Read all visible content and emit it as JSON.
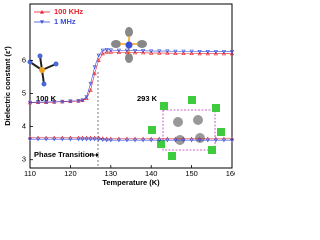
{
  "chart_data": {
    "type": "line",
    "x_label": "Temperature (K)",
    "y_label": "Dielectric constant (ε′)",
    "x": [
      110,
      112,
      114,
      116,
      118,
      120,
      122,
      123,
      124,
      125,
      126,
      127,
      128,
      129,
      130,
      132,
      134,
      136,
      138,
      140,
      142,
      144,
      146,
      148,
      150,
      152,
      154,
      156,
      158,
      160
    ],
    "series": [
      {
        "name": "100 KHz",
        "color": "#e8202a",
        "marker": "triangle-up",
        "values": [
          4.72,
          4.73,
          4.73,
          4.74,
          4.75,
          4.76,
          4.77,
          4.79,
          4.85,
          5.1,
          5.6,
          6.0,
          6.2,
          6.25,
          6.25,
          6.24,
          6.24,
          6.23,
          6.23,
          6.22,
          6.22,
          6.22,
          6.21,
          6.21,
          6.21,
          6.2,
          6.2,
          6.2,
          6.2,
          6.2
        ]
      },
      {
        "name": "1 MHz",
        "color": "#3a4fd8",
        "marker": "triangle-down",
        "values": [
          4.73,
          4.74,
          4.74,
          4.75,
          4.76,
          4.77,
          4.78,
          4.8,
          4.9,
          5.3,
          5.8,
          6.15,
          6.3,
          6.32,
          6.31,
          6.3,
          6.3,
          6.29,
          6.29,
          6.28,
          6.28,
          6.28,
          6.27,
          6.27,
          6.27,
          6.26,
          6.26,
          6.26,
          6.26,
          6.26
        ]
      },
      {
        "color": "#e8202a",
        "marker": "triangle-up",
        "values": [
          3.66,
          3.66,
          3.66,
          3.66,
          3.66,
          3.66,
          3.66,
          3.66,
          3.66,
          3.66,
          3.66,
          3.66,
          3.64,
          3.63,
          3.63,
          3.63,
          3.63,
          3.63,
          3.63,
          3.63,
          3.63,
          3.63,
          3.63,
          3.63,
          3.63,
          3.63,
          3.63,
          3.63,
          3.63,
          3.63
        ]
      },
      {
        "color": "#3a4fd8",
        "marker": "triangle-down",
        "values": [
          3.62,
          3.62,
          3.62,
          3.62,
          3.62,
          3.62,
          3.62,
          3.62,
          3.62,
          3.62,
          3.62,
          3.62,
          3.6,
          3.59,
          3.59,
          3.59,
          3.59,
          3.59,
          3.59,
          3.59,
          3.59,
          3.59,
          3.59,
          3.59,
          3.59,
          3.59,
          3.59,
          3.59,
          3.59,
          3.59
        ]
      }
    ],
    "xlim": [
      110,
      160
    ],
    "xticks": [
      110,
      120,
      130,
      140,
      150,
      160
    ],
    "ylim": [
      2.75,
      7.7
    ],
    "yticks": [
      3,
      4,
      5,
      6
    ],
    "legend": "top-left",
    "annotations": [
      "100 K",
      "293 K",
      "Phase Transition"
    ]
  }
}
